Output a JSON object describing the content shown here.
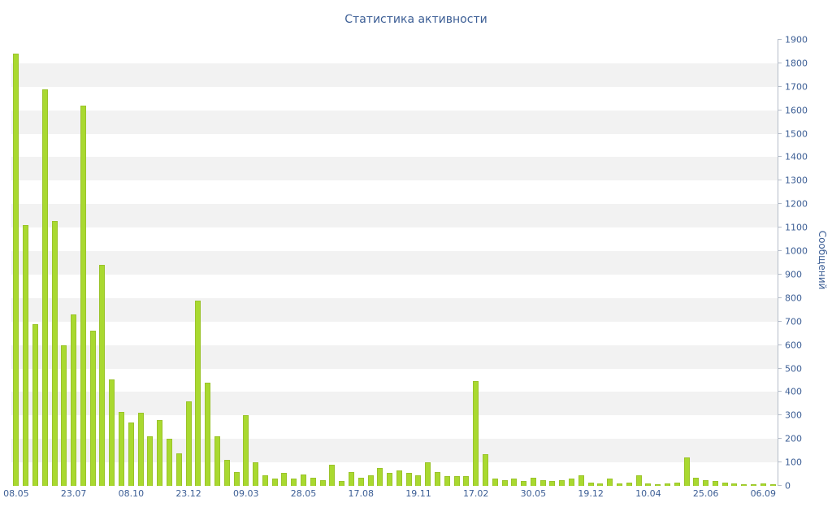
{
  "colors": {
    "bar": "#a9d930",
    "bar_border": "#9ac32a",
    "band": "#f2f2f2",
    "axis": "#b4bcc8",
    "text": "#3c5e95"
  },
  "chart_data": {
    "type": "bar",
    "title": "Статистика активности",
    "xlabel": "",
    "ylabel": "Сообщений",
    "ylim": [
      0,
      1900
    ],
    "y_tick_step": 100,
    "grid": "alternating-horizontal-bands",
    "legend": "none",
    "x_tick_labels": [
      "08.05",
      "23.07",
      "08.10",
      "23.12",
      "09.03",
      "28.05",
      "17.08",
      "19.11",
      "17.02",
      "30.05",
      "19.12",
      "10.04",
      "25.06",
      "06.09"
    ],
    "x_tick_start_index": 0,
    "x_tick_every": 6,
    "values": [
      1840,
      1110,
      690,
      1690,
      1130,
      600,
      730,
      1620,
      660,
      940,
      455,
      315,
      270,
      310,
      210,
      280,
      200,
      140,
      360,
      790,
      440,
      210,
      110,
      60,
      300,
      100,
      45,
      30,
      55,
      30,
      50,
      35,
      25,
      90,
      20,
      60,
      35,
      45,
      75,
      55,
      65,
      55,
      45,
      100,
      60,
      40,
      40,
      40,
      445,
      135,
      30,
      25,
      30,
      20,
      35,
      25,
      20,
      25,
      30,
      45,
      15,
      10,
      30,
      10,
      15,
      45,
      10,
      8,
      10,
      15,
      120,
      35,
      25,
      20,
      15,
      10,
      8,
      5,
      12,
      5
    ]
  }
}
